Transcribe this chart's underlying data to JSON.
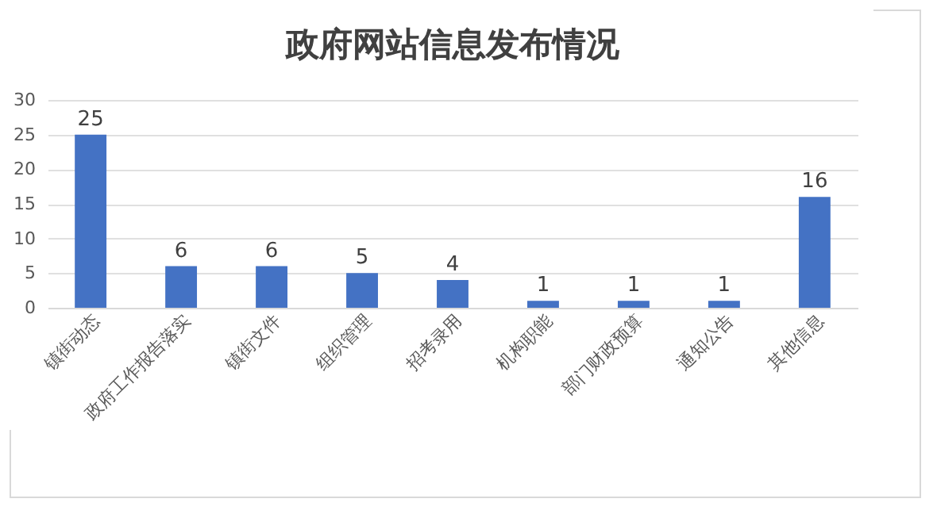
{
  "chart_data": {
    "type": "bar",
    "title": "政府网站信息发布情况",
    "categories": [
      "镇街动态",
      "政府工作报告落实",
      "镇街文件",
      "组织管理",
      "招考录用",
      "机构职能",
      "部门财政预算",
      "通知公告",
      "其他信息"
    ],
    "values": [
      25,
      6,
      6,
      5,
      4,
      1,
      1,
      1,
      16
    ],
    "color": "#4472c4",
    "ylim": [
      0,
      30
    ],
    "yticks": [
      0,
      5,
      10,
      15,
      20,
      25,
      30
    ],
    "grid": "y",
    "data_labels": true
  }
}
